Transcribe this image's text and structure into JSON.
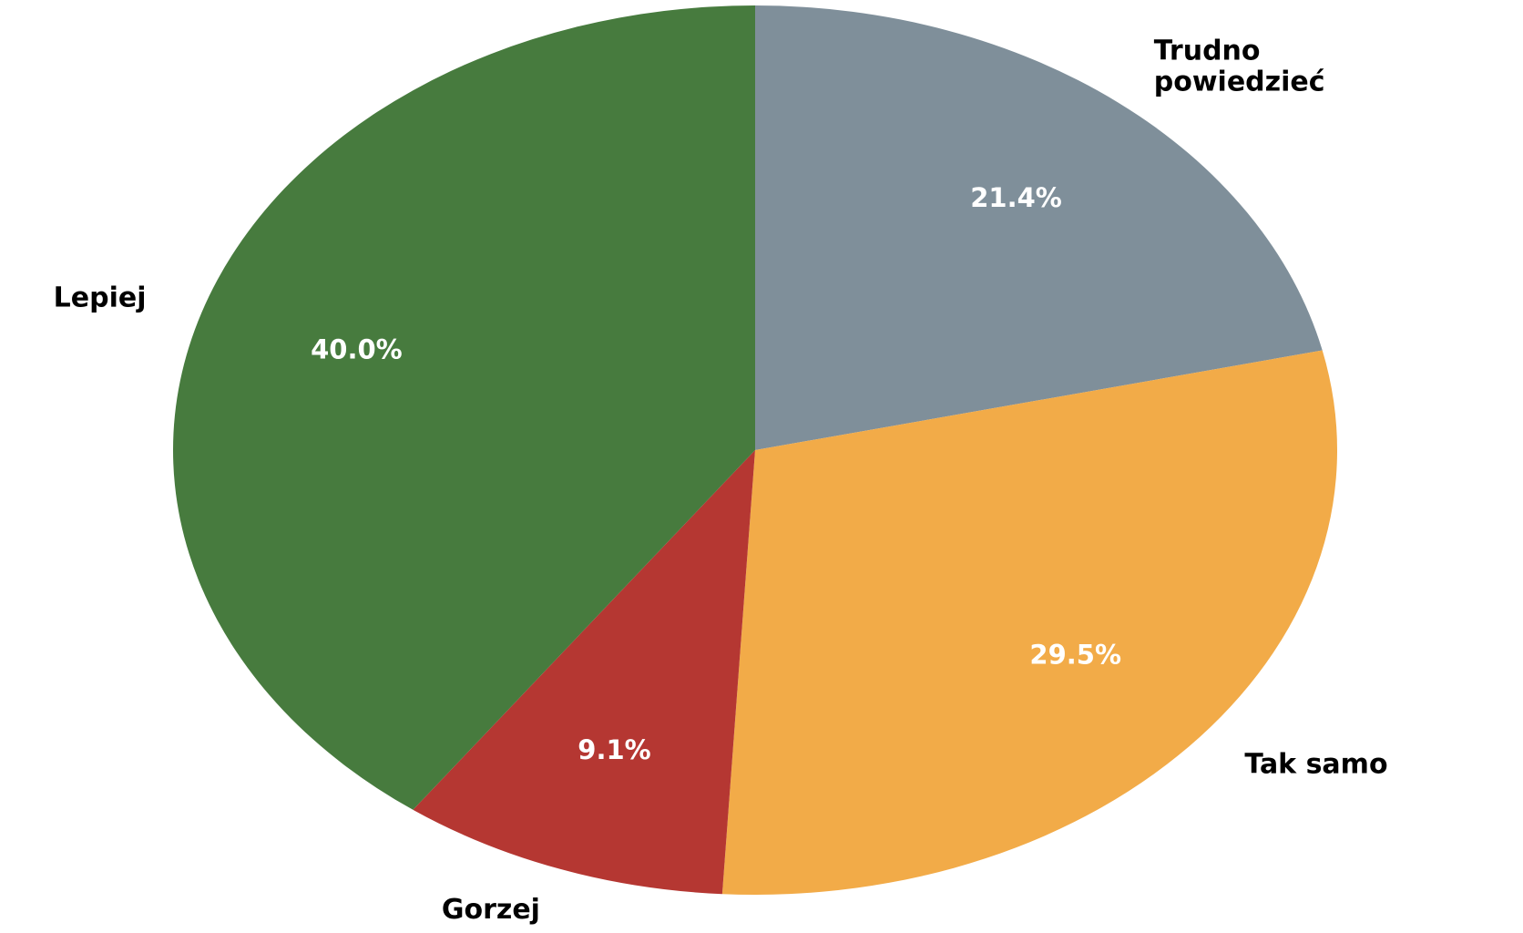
{
  "chart_data": {
    "type": "pie",
    "start_angle_deg": 90,
    "direction": "clockwise",
    "slices": [
      {
        "label": "Trudno powiedzieć",
        "label_lines": [
          "Trudno",
          "powiedzieć"
        ],
        "value": 21.4,
        "pct_text": "21.4%",
        "color": "#7f8f9a"
      },
      {
        "label": "Tak samo",
        "label_lines": [
          "Tak samo"
        ],
        "value": 29.5,
        "pct_text": "29.5%",
        "color": "#f2ab48"
      },
      {
        "label": "Gorzej",
        "label_lines": [
          "Gorzej"
        ],
        "value": 9.1,
        "pct_text": "9.1%",
        "color": "#b53732"
      },
      {
        "label": "Lepiej",
        "label_lines": [
          "Lepiej"
        ],
        "value": 40.0,
        "pct_text": "40.0%",
        "color": "#477b3e"
      }
    ]
  }
}
